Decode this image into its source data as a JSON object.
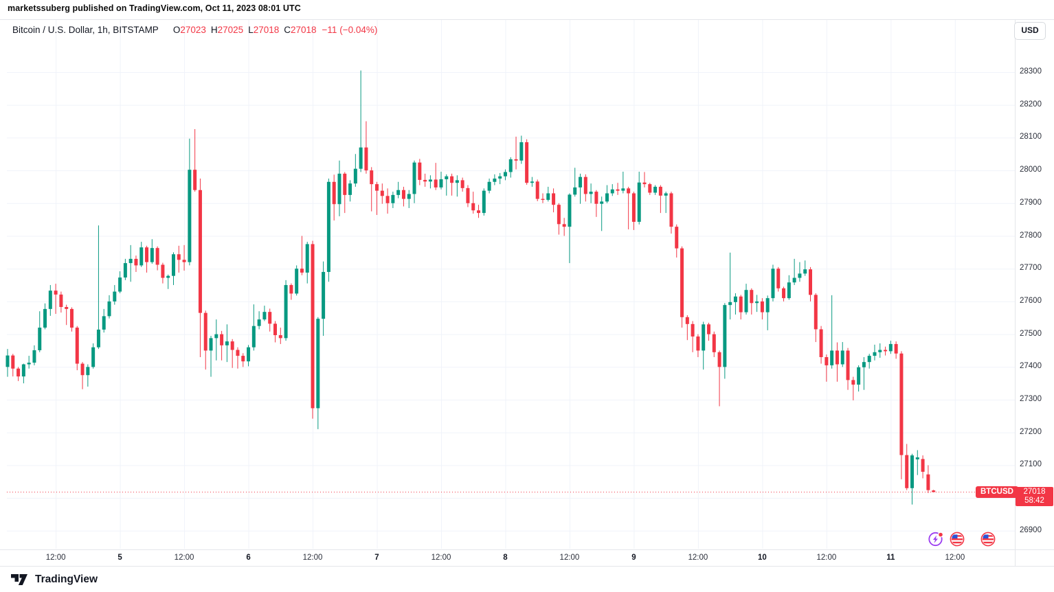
{
  "attribution": "marketssuberg published on TradingView.com, Oct 11, 2023 08:01 UTC",
  "legend": {
    "title": "Bitcoin / U.S. Dollar, 1h, BITSTAMP",
    "open_label": "O",
    "open": "27023",
    "high_label": "H",
    "high": "27025",
    "low_label": "L",
    "low": "27018",
    "close_label": "C",
    "close": "27018",
    "change": "−11 (−0.04%)"
  },
  "currency_button": "USD",
  "footer": {
    "logo_text": "TradingView"
  },
  "bottom_markers": [
    {
      "type": "events-lightning-icon"
    },
    {
      "type": "us-flag-icon"
    },
    {
      "type": "us-flag-icon"
    }
  ],
  "chart_data": {
    "type": "candlestick",
    "title": "Bitcoin / U.S. Dollar, 1h, BITSTAMP",
    "symbol": "BTCUSD",
    "exchange": "BITSTAMP",
    "interval": "1h",
    "quote_currency": "USD",
    "start_time_utc": "2023-10-04 03:00",
    "step_hours": 1,
    "last_price": 27018,
    "countdown": "58:42",
    "current_bar": {
      "open": 27023,
      "high": 27025,
      "low": 27018,
      "close": 27018,
      "change": -11,
      "change_pct": -0.04
    },
    "y_axis": {
      "tick_min": 26900,
      "tick_max": 28300,
      "tick_step": 100,
      "visible_min": 26843,
      "visible_max": 28400,
      "grid": true
    },
    "x_ticks": [
      {
        "i": 9,
        "label": "12:00",
        "day": false
      },
      {
        "i": 21,
        "label": "5",
        "day": true
      },
      {
        "i": 33,
        "label": "12:00",
        "day": false
      },
      {
        "i": 45,
        "label": "6",
        "day": true
      },
      {
        "i": 57,
        "label": "12:00",
        "day": false
      },
      {
        "i": 69,
        "label": "7",
        "day": true
      },
      {
        "i": 81,
        "label": "12:00",
        "day": false
      },
      {
        "i": 93,
        "label": "8",
        "day": true
      },
      {
        "i": 105,
        "label": "12:00",
        "day": false
      },
      {
        "i": 117,
        "label": "9",
        "day": true
      },
      {
        "i": 129,
        "label": "12:00",
        "day": false
      },
      {
        "i": 141,
        "label": "10",
        "day": true
      },
      {
        "i": 153,
        "label": "12:00",
        "day": false
      },
      {
        "i": 165,
        "label": "11",
        "day": true
      },
      {
        "i": 177,
        "label": "12:00",
        "day": false
      }
    ],
    "colors": {
      "up": "#089981",
      "down": "#F23645",
      "grid": "#F0F3FA",
      "axis_line": "#E0E3EB",
      "dotted_line": "#F23645",
      "label_bg": "#F23645"
    },
    "ohlc": [
      [
        27400,
        27455,
        27370,
        27435
      ],
      [
        27435,
        27440,
        27371,
        27395
      ],
      [
        27395,
        27400,
        27357,
        27371
      ],
      [
        27371,
        27410,
        27350,
        27408
      ],
      [
        27408,
        27434,
        27395,
        27413
      ],
      [
        27413,
        27466,
        27405,
        27451
      ],
      [
        27451,
        27570,
        27445,
        27520
      ],
      [
        27520,
        27594,
        27515,
        27577
      ],
      [
        27577,
        27650,
        27556,
        27633
      ],
      [
        27633,
        27654,
        27562,
        27621
      ],
      [
        27621,
        27630,
        27566,
        27583
      ],
      [
        27583,
        27590,
        27528,
        27577
      ],
      [
        27577,
        27582,
        27508,
        27520
      ],
      [
        27520,
        27525,
        27390,
        27410
      ],
      [
        27410,
        27415,
        27332,
        27375
      ],
      [
        27375,
        27408,
        27340,
        27400
      ],
      [
        27400,
        27472,
        27395,
        27460
      ],
      [
        27460,
        27832,
        27455,
        27514
      ],
      [
        27514,
        27577,
        27505,
        27555
      ],
      [
        27555,
        27619,
        27548,
        27600
      ],
      [
        27600,
        27650,
        27590,
        27630
      ],
      [
        27630,
        27692,
        27625,
        27673
      ],
      [
        27673,
        27730,
        27665,
        27717
      ],
      [
        27717,
        27772,
        27660,
        27730
      ],
      [
        27730,
        27740,
        27690,
        27710
      ],
      [
        27710,
        27782,
        27705,
        27765
      ],
      [
        27765,
        27770,
        27688,
        27720
      ],
      [
        27720,
        27790,
        27715,
        27763
      ],
      [
        27763,
        27768,
        27695,
        27712
      ],
      [
        27712,
        27718,
        27655,
        27672
      ],
      [
        27672,
        27682,
        27638,
        27678
      ],
      [
        27678,
        27750,
        27650,
        27744
      ],
      [
        27744,
        27770,
        27688,
        27727
      ],
      [
        27727,
        27772,
        27694,
        27720
      ],
      [
        27720,
        28097,
        27710,
        28002
      ],
      [
        28002,
        28126,
        27935,
        27940
      ],
      [
        27940,
        27975,
        27430,
        27565
      ],
      [
        27565,
        27572,
        27392,
        27450
      ],
      [
        27450,
        27495,
        27370,
        27488
      ],
      [
        27488,
        27545,
        27420,
        27500
      ],
      [
        27500,
        27510,
        27420,
        27466
      ],
      [
        27466,
        27530,
        27415,
        27478
      ],
      [
        27478,
        27485,
        27397,
        27452
      ],
      [
        27452,
        27460,
        27395,
        27434
      ],
      [
        27434,
        27442,
        27400,
        27417
      ],
      [
        27417,
        27467,
        27402,
        27460
      ],
      [
        27460,
        27591,
        27450,
        27525
      ],
      [
        27525,
        27570,
        27515,
        27545
      ],
      [
        27545,
        27587,
        27540,
        27568
      ],
      [
        27568,
        27578,
        27508,
        27532
      ],
      [
        27532,
        27540,
        27475,
        27497
      ],
      [
        27497,
        27520,
        27470,
        27488
      ],
      [
        27488,
        27665,
        27480,
        27650
      ],
      [
        27650,
        27655,
        27605,
        27624
      ],
      [
        27624,
        27710,
        27618,
        27700
      ],
      [
        27700,
        27800,
        27680,
        27688
      ],
      [
        27688,
        27782,
        27655,
        27775
      ],
      [
        27775,
        27785,
        27242,
        27274
      ],
      [
        27274,
        27552,
        27210,
        27547
      ],
      [
        27547,
        27722,
        27495,
        27690
      ],
      [
        27690,
        27975,
        27660,
        27965
      ],
      [
        27965,
        27987,
        27847,
        27897
      ],
      [
        27897,
        28030,
        27860,
        27990
      ],
      [
        27990,
        27995,
        27870,
        27925
      ],
      [
        27925,
        27970,
        27905,
        27960
      ],
      [
        27960,
        28050,
        27950,
        28005
      ],
      [
        28005,
        28305,
        27995,
        28070
      ],
      [
        28070,
        28150,
        27990,
        28000
      ],
      [
        28000,
        28010,
        27875,
        27958
      ],
      [
        27958,
        27965,
        27864,
        27938
      ],
      [
        27938,
        27960,
        27898,
        27922
      ],
      [
        27922,
        27945,
        27868,
        27900
      ],
      [
        27900,
        27935,
        27885,
        27925
      ],
      [
        27925,
        27965,
        27915,
        27940
      ],
      [
        27940,
        27950,
        27890,
        27913
      ],
      [
        27913,
        27940,
        27885,
        27928
      ],
      [
        27928,
        28030,
        27900,
        28024
      ],
      [
        28024,
        28035,
        27955,
        27971
      ],
      [
        27971,
        27990,
        27950,
        27966
      ],
      [
        27966,
        27985,
        27945,
        27972
      ],
      [
        27972,
        28023,
        27940,
        27948
      ],
      [
        27948,
        27996,
        27942,
        27973
      ],
      [
        27973,
        27988,
        27923,
        27982
      ],
      [
        27982,
        27990,
        27923,
        27962
      ],
      [
        27962,
        27985,
        27920,
        27970
      ],
      [
        27970,
        27978,
        27935,
        27946
      ],
      [
        27946,
        27955,
        27888,
        27900
      ],
      [
        27900,
        27935,
        27868,
        27878
      ],
      [
        27878,
        27895,
        27855,
        27870
      ],
      [
        27870,
        27945,
        27862,
        27938
      ],
      [
        27938,
        27975,
        27930,
        27965
      ],
      [
        27965,
        27988,
        27955,
        27975
      ],
      [
        27975,
        27992,
        27958,
        27982
      ],
      [
        27982,
        28003,
        27970,
        27995
      ],
      [
        27995,
        28040,
        27978,
        28034
      ],
      [
        28034,
        28103,
        28003,
        28030
      ],
      [
        28030,
        28106,
        28020,
        28086
      ],
      [
        28086,
        28095,
        27956,
        27962
      ],
      [
        27962,
        27980,
        27950,
        27966
      ],
      [
        27966,
        27972,
        27906,
        27913
      ],
      [
        27913,
        27930,
        27900,
        27910
      ],
      [
        27910,
        27950,
        27905,
        27930
      ],
      [
        27930,
        27945,
        27872,
        27895
      ],
      [
        27895,
        27900,
        27804,
        27836
      ],
      [
        27836,
        27855,
        27800,
        27828
      ],
      [
        27828,
        27930,
        27717,
        27926
      ],
      [
        27926,
        28008,
        27920,
        27948
      ],
      [
        27948,
        27990,
        27898,
        27980
      ],
      [
        27980,
        27988,
        27905,
        27928
      ],
      [
        27928,
        27960,
        27900,
        27935
      ],
      [
        27935,
        27940,
        27858,
        27898
      ],
      [
        27898,
        27920,
        27815,
        27905
      ],
      [
        27905,
        27955,
        27900,
        27930
      ],
      [
        27930,
        27958,
        27922,
        27942
      ],
      [
        27942,
        27962,
        27925,
        27938
      ],
      [
        27938,
        27996,
        27930,
        27945
      ],
      [
        27945,
        27950,
        27820,
        27930
      ],
      [
        27930,
        27935,
        27818,
        27843
      ],
      [
        27843,
        27996,
        27835,
        27963
      ],
      [
        27963,
        27995,
        27948,
        27958
      ],
      [
        27958,
        27962,
        27925,
        27932
      ],
      [
        27932,
        27955,
        27925,
        27950
      ],
      [
        27950,
        27955,
        27870,
        27923
      ],
      [
        27923,
        27935,
        27870,
        27930
      ],
      [
        27930,
        27935,
        27807,
        27828
      ],
      [
        27828,
        27835,
        27734,
        27762
      ],
      [
        27762,
        27768,
        27520,
        27552
      ],
      [
        27552,
        27558,
        27482,
        27531
      ],
      [
        27531,
        27540,
        27445,
        27493
      ],
      [
        27493,
        27500,
        27430,
        27450
      ],
      [
        27450,
        27538,
        27392,
        27530
      ],
      [
        27530,
        27535,
        27480,
        27500
      ],
      [
        27500,
        27508,
        27430,
        27445
      ],
      [
        27445,
        27450,
        27280,
        27400
      ],
      [
        27400,
        27595,
        27364,
        27589
      ],
      [
        27589,
        27749,
        27545,
        27598
      ],
      [
        27598,
        27625,
        27560,
        27615
      ],
      [
        27615,
        27620,
        27545,
        27567
      ],
      [
        27567,
        27654,
        27560,
        27635
      ],
      [
        27635,
        27640,
        27560,
        27595
      ],
      [
        27595,
        27620,
        27568,
        27600
      ],
      [
        27600,
        27610,
        27545,
        27567
      ],
      [
        27567,
        27618,
        27512,
        27610
      ],
      [
        27610,
        27712,
        27600,
        27700
      ],
      [
        27700,
        27705,
        27630,
        27640
      ],
      [
        27640,
        27645,
        27600,
        27610
      ],
      [
        27610,
        27680,
        27605,
        27658
      ],
      [
        27658,
        27730,
        27650,
        27672
      ],
      [
        27672,
        27720,
        27660,
        27685
      ],
      [
        27685,
        27725,
        27678,
        27698
      ],
      [
        27698,
        27705,
        27600,
        27620
      ],
      [
        27620,
        27625,
        27476,
        27515
      ],
      [
        27515,
        27525,
        27410,
        27430
      ],
      [
        27430,
        27438,
        27355,
        27405
      ],
      [
        27405,
        27619,
        27395,
        27450
      ],
      [
        27450,
        27475,
        27355,
        27408
      ],
      [
        27408,
        27476,
        27400,
        27450
      ],
      [
        27450,
        27458,
        27330,
        27360
      ],
      [
        27360,
        27370,
        27298,
        27346
      ],
      [
        27346,
        27405,
        27325,
        27399
      ],
      [
        27399,
        27430,
        27330,
        27415
      ],
      [
        27415,
        27440,
        27395,
        27434
      ],
      [
        27434,
        27468,
        27420,
        27445
      ],
      [
        27445,
        27472,
        27428,
        27452
      ],
      [
        27452,
        27462,
        27435,
        27448
      ],
      [
        27448,
        27480,
        27440,
        27470
      ],
      [
        27470,
        27478,
        27425,
        27441
      ],
      [
        27441,
        27448,
        27057,
        27131
      ],
      [
        27131,
        27165,
        27024,
        27030
      ],
      [
        27030,
        27135,
        26980,
        27130
      ],
      [
        27118,
        27146,
        27070,
        27124
      ],
      [
        27119,
        27130,
        27060,
        27080
      ],
      [
        27072,
        27100,
        27015,
        27024
      ],
      [
        27023,
        27025,
        27018,
        27018
      ]
    ]
  }
}
